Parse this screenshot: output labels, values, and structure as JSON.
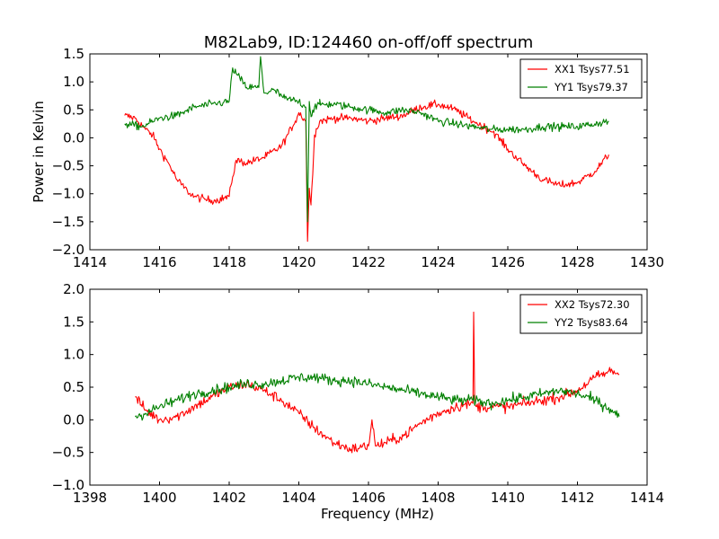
{
  "title": "M82Lab9, ID:124460 on-off/off spectrum",
  "chart_data": [
    {
      "type": "line",
      "title": "M82Lab9, ID:124460 on-off/off spectrum",
      "xlabel": "",
      "ylabel": "Power in Kelvin",
      "xlim": [
        1414,
        1430
      ],
      "ylim": [
        -2.0,
        1.5
      ],
      "x_ticks": [
        1414,
        1416,
        1418,
        1420,
        1422,
        1424,
        1426,
        1428,
        1430
      ],
      "x_tick_labels": [
        "1414",
        "1416",
        "1418",
        "1420",
        "1422",
        "1424",
        "1426",
        "1428",
        "1430"
      ],
      "y_ticks": [
        -2.0,
        -1.5,
        -1.0,
        -0.5,
        0.0,
        0.5,
        1.0,
        1.5
      ],
      "y_tick_labels": [
        "−2.0",
        "−1.5",
        "−1.0",
        "−0.5",
        "0.0",
        "0.5",
        "1.0",
        "1.5"
      ],
      "grid": false,
      "legend_position": "top-right",
      "series": [
        {
          "name": "XX1 Tsys77.51",
          "color": "#ff0000",
          "noise": 0.07,
          "x": [
            1415.0,
            1415.3,
            1415.6,
            1415.8,
            1416.0,
            1416.3,
            1416.5,
            1416.8,
            1417.0,
            1417.3,
            1417.6,
            1418.0,
            1418.1,
            1418.2,
            1418.5,
            1419.0,
            1419.5,
            1419.9,
            1420.0,
            1420.2,
            1420.25,
            1420.3,
            1420.35,
            1420.45,
            1420.6,
            1421.0,
            1421.5,
            1422.0,
            1422.5,
            1423.0,
            1423.5,
            1424.0,
            1424.5,
            1425.0,
            1425.3,
            1425.6,
            1426.0,
            1426.5,
            1427.0,
            1427.5,
            1428.0,
            1428.5,
            1428.9
          ],
          "y": [
            0.4,
            0.35,
            0.15,
            0.05,
            -0.2,
            -0.5,
            -0.75,
            -0.95,
            -1.05,
            -1.1,
            -1.12,
            -1.05,
            -0.7,
            -0.4,
            -0.45,
            -0.35,
            -0.15,
            0.3,
            0.45,
            0.3,
            -1.85,
            -0.9,
            -1.2,
            0.05,
            0.3,
            0.35,
            0.35,
            0.3,
            0.35,
            0.4,
            0.55,
            0.6,
            0.5,
            0.3,
            0.2,
            0.1,
            -0.2,
            -0.5,
            -0.75,
            -0.85,
            -0.8,
            -0.6,
            -0.3
          ]
        },
        {
          "name": "YY1 Tsys79.37",
          "color": "#008000",
          "noise": 0.07,
          "x": [
            1415.0,
            1415.5,
            1416.0,
            1416.5,
            1417.0,
            1417.5,
            1418.0,
            1418.1,
            1418.2,
            1418.5,
            1418.85,
            1418.9,
            1419.0,
            1419.3,
            1419.6,
            1420.0,
            1420.2,
            1420.25,
            1420.3,
            1420.35,
            1420.45,
            1420.6,
            1421.0,
            1421.5,
            1422.0,
            1422.5,
            1423.0,
            1423.5,
            1424.0,
            1424.5,
            1425.0,
            1425.5,
            1426.0,
            1426.5,
            1427.0,
            1427.5,
            1428.0,
            1428.5,
            1428.9
          ],
          "y": [
            0.25,
            0.2,
            0.35,
            0.4,
            0.55,
            0.6,
            0.65,
            1.25,
            1.15,
            0.9,
            0.9,
            1.45,
            0.8,
            0.85,
            0.7,
            0.65,
            0.55,
            -1.5,
            0.65,
            0.4,
            0.55,
            0.6,
            0.6,
            0.55,
            0.5,
            0.45,
            0.5,
            0.45,
            0.3,
            0.25,
            0.2,
            0.15,
            0.15,
            0.15,
            0.2,
            0.2,
            0.2,
            0.25,
            0.3
          ]
        }
      ]
    },
    {
      "type": "line",
      "title": "",
      "xlabel": "Frequency (MHz)",
      "ylabel": "",
      "xlim": [
        1398,
        1414
      ],
      "ylim": [
        -1.0,
        2.0
      ],
      "x_ticks": [
        1398,
        1400,
        1402,
        1404,
        1406,
        1408,
        1410,
        1412,
        1414
      ],
      "x_tick_labels": [
        "1398",
        "1400",
        "1402",
        "1404",
        "1406",
        "1408",
        "1410",
        "1412",
        "1414"
      ],
      "y_ticks": [
        -1.0,
        -0.5,
        0.0,
        0.5,
        1.0,
        1.5,
        2.0
      ],
      "y_tick_labels": [
        "−1.0",
        "−0.5",
        "0.0",
        "0.5",
        "1.0",
        "1.5",
        "2.0"
      ],
      "grid": false,
      "legend_position": "top-right",
      "series": [
        {
          "name": "XX2 Tsys72.30",
          "color": "#ff0000",
          "noise": 0.08,
          "x": [
            1399.3,
            1399.6,
            1400.0,
            1400.5,
            1401.0,
            1401.5,
            1402.0,
            1402.5,
            1403.0,
            1403.5,
            1404.0,
            1404.5,
            1405.0,
            1405.5,
            1406.0,
            1406.1,
            1406.2,
            1406.5,
            1407.0,
            1407.5,
            1408.0,
            1408.5,
            1409.0,
            1409.02,
            1409.05,
            1409.1,
            1409.5,
            1410.0,
            1410.5,
            1411.0,
            1411.5,
            1412.0,
            1412.5,
            1413.0,
            1413.2
          ],
          "y": [
            0.35,
            0.15,
            0.0,
            0.05,
            0.2,
            0.35,
            0.5,
            0.55,
            0.45,
            0.3,
            0.1,
            -0.15,
            -0.35,
            -0.45,
            -0.4,
            0.0,
            -0.4,
            -0.35,
            -0.25,
            -0.05,
            0.1,
            0.2,
            0.25,
            1.65,
            0.25,
            0.2,
            0.2,
            0.2,
            0.25,
            0.3,
            0.35,
            0.45,
            0.65,
            0.75,
            0.7
          ]
        },
        {
          "name": "YY2 Tsys83.64",
          "color": "#008000",
          "noise": 0.08,
          "x": [
            1399.3,
            1399.6,
            1400.0,
            1400.5,
            1401.0,
            1401.5,
            1402.0,
            1402.5,
            1403.0,
            1403.5,
            1404.0,
            1404.5,
            1405.0,
            1405.5,
            1406.0,
            1406.5,
            1407.0,
            1407.5,
            1408.0,
            1408.5,
            1409.0,
            1409.5,
            1410.0,
            1410.5,
            1411.0,
            1411.5,
            1412.0,
            1412.5,
            1413.0,
            1413.2
          ],
          "y": [
            0.05,
            0.1,
            0.2,
            0.3,
            0.4,
            0.45,
            0.5,
            0.55,
            0.55,
            0.6,
            0.65,
            0.65,
            0.6,
            0.6,
            0.55,
            0.5,
            0.45,
            0.4,
            0.35,
            0.3,
            0.3,
            0.25,
            0.3,
            0.35,
            0.4,
            0.45,
            0.4,
            0.3,
            0.15,
            0.05
          ]
        }
      ]
    }
  ]
}
